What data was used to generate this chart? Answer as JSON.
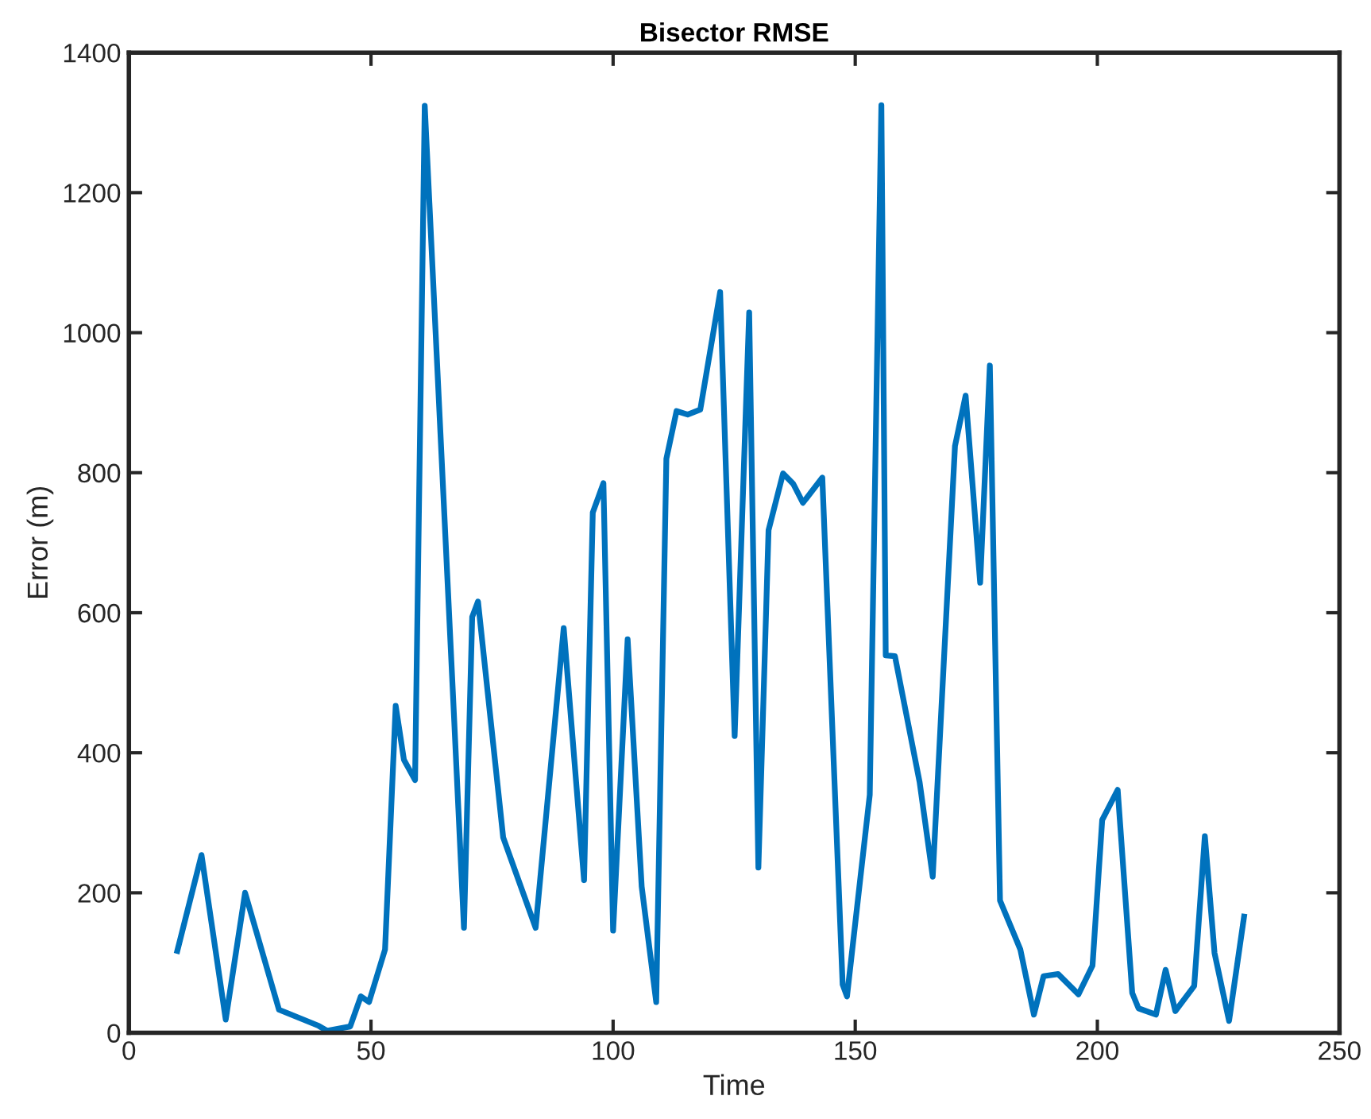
{
  "chart_data": {
    "type": "line",
    "title": "Bisector RMSE",
    "xlabel": "Time",
    "ylabel": "Error (m)",
    "x": [
      10,
      15,
      20,
      24,
      31,
      39.2,
      40.9,
      45.7,
      47.9,
      49.6,
      52.9,
      55.1,
      56.8,
      59.1,
      61.1,
      67.2,
      69.2,
      70.9,
      72.1,
      77.3,
      84,
      89.8,
      94,
      95.8,
      98,
      100,
      103,
      105.9,
      108.9,
      111,
      113.1,
      115.4,
      118,
      122.1,
      125.1,
      128.1,
      130,
      132.1,
      135.1,
      137.2,
      139.2,
      143.2,
      147.4,
      148.3,
      153,
      155.4,
      156.3,
      158.2,
      163.3,
      166,
      170.6,
      172.8,
      175.8,
      177.8,
      179.9,
      184.1,
      186.9,
      188.9,
      191.9,
      196.1,
      199,
      201,
      204.2,
      207.2,
      208.5,
      212.1,
      214.1,
      216.1,
      220,
      222.2,
      224.2,
      227.2,
      230.3
    ],
    "series": [
      {
        "color": "#0072bd",
        "values": [
          117,
          254,
          19,
          200,
          33,
          10,
          3,
          9,
          52,
          44,
          119,
          467,
          390,
          361,
          1324,
          444,
          150,
          594,
          616,
          279,
          150,
          578,
          218,
          743,
          785,
          146,
          562,
          209,
          44,
          820,
          888,
          883,
          890,
          1058,
          424,
          1029,
          236,
          718,
          799,
          784,
          757,
          793,
          69,
          52,
          340,
          1325,
          539,
          538,
          358,
          223,
          838,
          910,
          643,
          953,
          189,
          119,
          26,
          81,
          84,
          55,
          96,
          304,
          347,
          57,
          35,
          26,
          90,
          31,
          67,
          281,
          114,
          17,
          166
        ]
      }
    ],
    "xlim": [
      0,
      250
    ],
    "xticks": [
      0,
      50,
      100,
      150,
      200,
      250
    ],
    "ylim": [
      0,
      1400
    ],
    "yticks": [
      0,
      200,
      400,
      600,
      800,
      1000,
      1200,
      1400
    ],
    "grid": false,
    "marker": "none",
    "line_style": "solid"
  }
}
